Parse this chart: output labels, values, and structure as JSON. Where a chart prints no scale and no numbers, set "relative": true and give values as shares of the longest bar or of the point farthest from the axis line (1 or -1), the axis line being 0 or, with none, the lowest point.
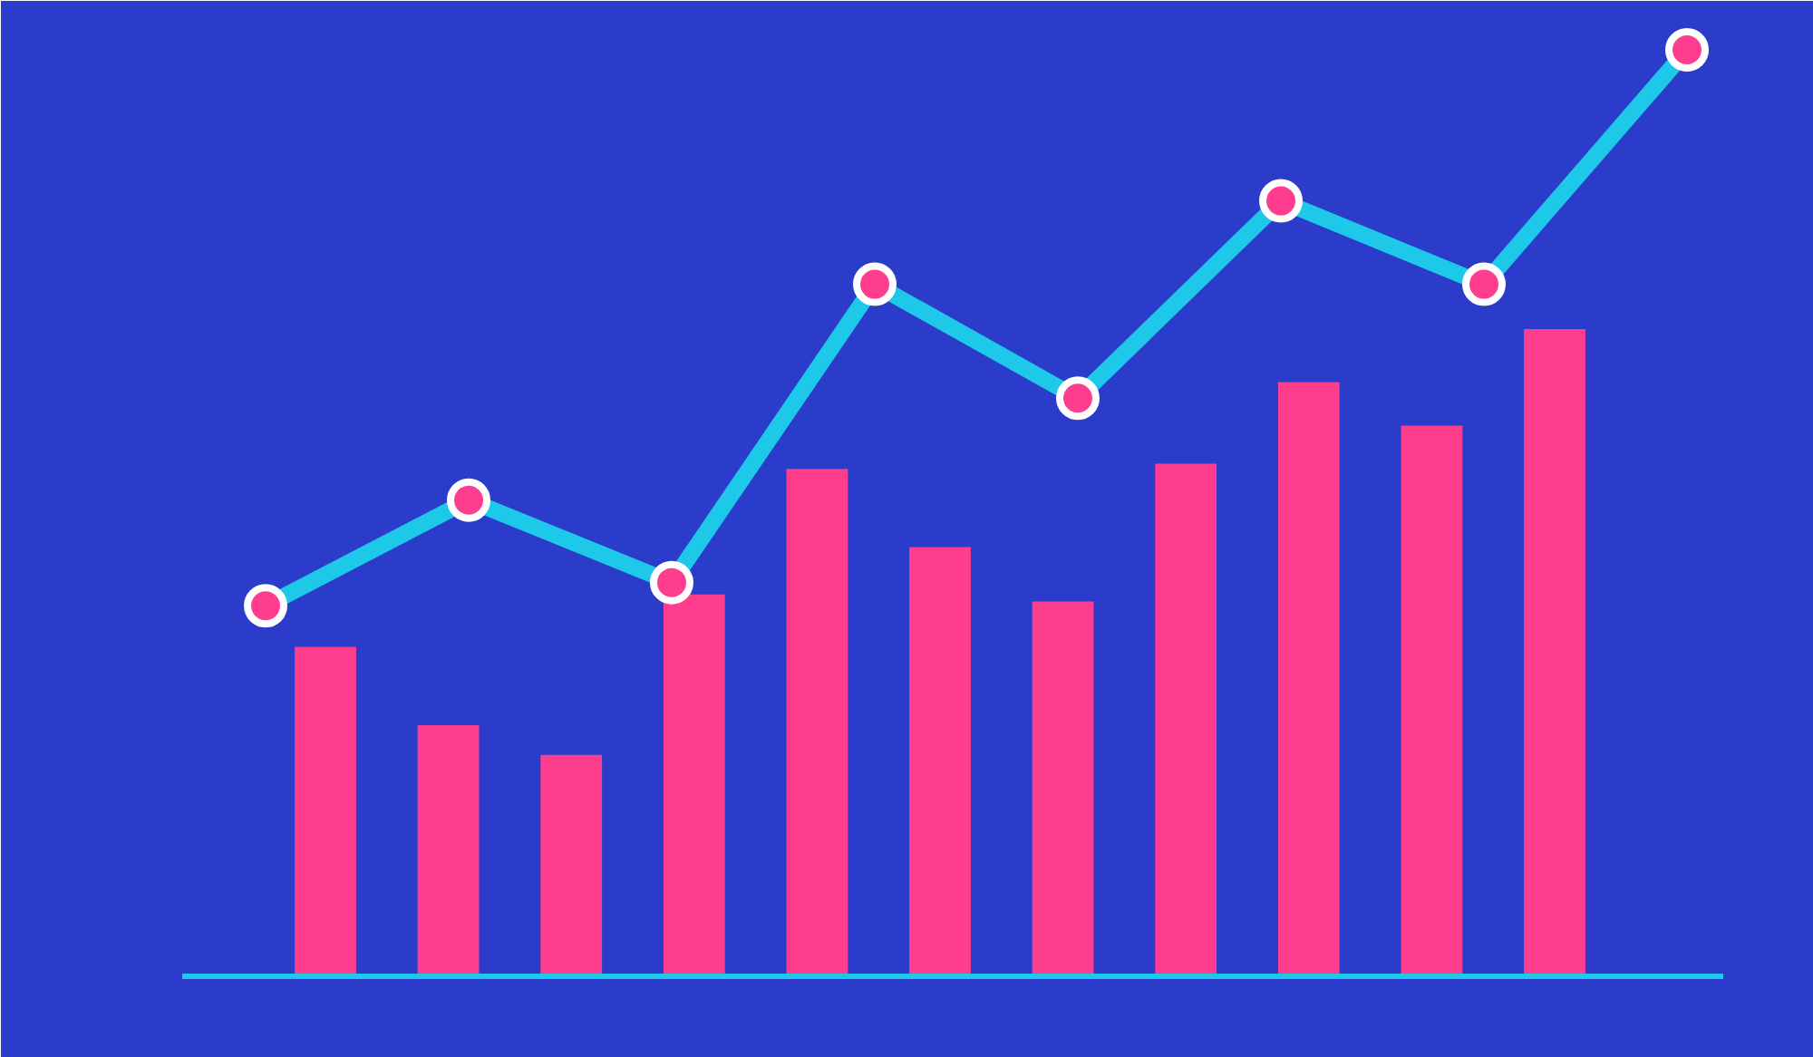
{
  "chart_data": [
    {
      "type": "bar",
      "relative": true,
      "categories": [
        null,
        null,
        null,
        null,
        null,
        null,
        null,
        null,
        null,
        null,
        null
      ],
      "color": "#ff3d8f",
      "values": [
        0.509,
        0.388,
        0.342,
        0.59,
        0.784,
        0.663,
        0.579,
        0.792,
        0.918,
        0.851,
        1
      ]
    },
    {
      "type": "line",
      "relative": true,
      "categories": [
        null,
        null,
        null,
        null,
        null,
        null,
        null,
        null
      ],
      "color": "#1ec8e8",
      "marker": "circle",
      "values": [
        0.4,
        0.514,
        0.425,
        0.747,
        0.624,
        0.837,
        0.747,
        1
      ]
    }
  ]
}
